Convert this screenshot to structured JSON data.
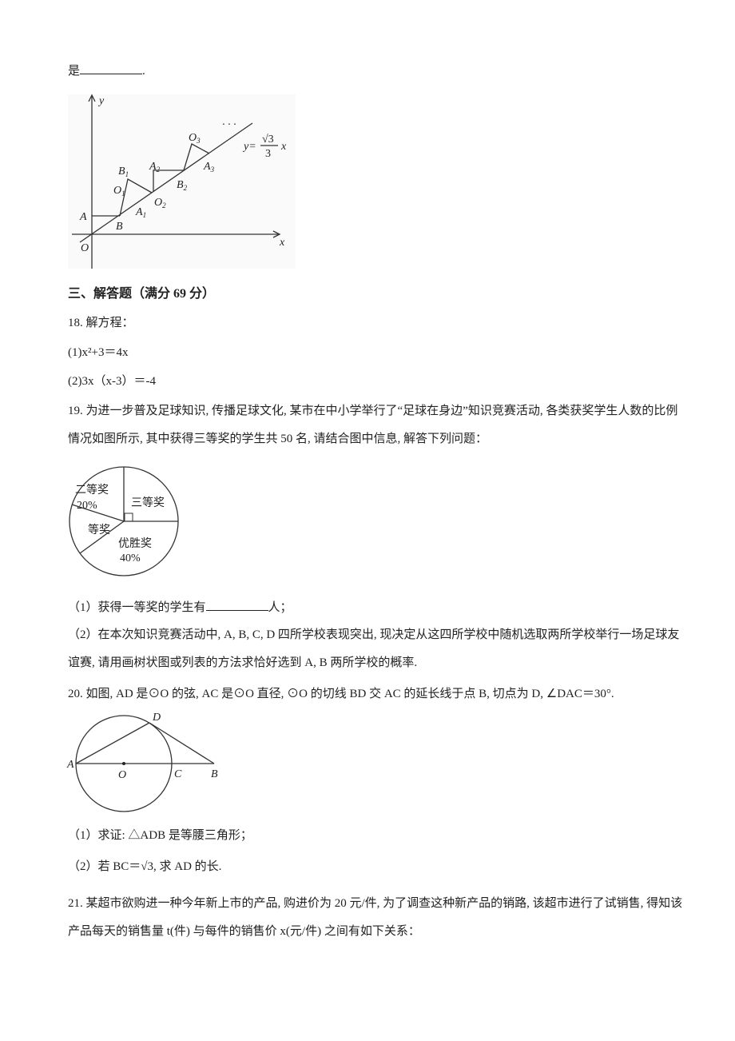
{
  "top_line": {
    "prefix": "是",
    "suffix": "."
  },
  "figure1": {
    "axis_y": "y",
    "axis_x": "x",
    "origin": "O",
    "points": [
      {
        "base": "A",
        "sub": ""
      },
      {
        "base": "B",
        "sub": ""
      },
      {
        "base": "B",
        "sub": "1"
      },
      {
        "base": "O",
        "sub": "1"
      },
      {
        "base": "A",
        "sub": "1"
      },
      {
        "base": "A",
        "sub": "2"
      },
      {
        "base": "O",
        "sub": "2"
      },
      {
        "base": "B",
        "sub": "2"
      },
      {
        "base": "O",
        "sub": "3"
      },
      {
        "base": "A",
        "sub": "3"
      }
    ],
    "equation": {
      "lhs": "y=",
      "numerator": "√3",
      "denominator": "3",
      "var": "x"
    },
    "dots": "· · ·"
  },
  "section": "三、解答题（满分 69 分）",
  "q18": {
    "stem": "18. 解方程：",
    "part1": "(1)x²+3＝4x",
    "part2": "(2)3x（x-3）＝-4"
  },
  "q19": {
    "stem": "19. 为进一步普及足球知识, 传播足球文化, 某市在中小学举行了“足球在身边”知识竞赛活动, 各类获奖学生人数的比例情况如图所示, 其中获得三等奖的学生共 50 名, 请结合图中信息, 解答下列问题：",
    "pie_labels": {
      "second": "二等奖",
      "second_pct": "20%",
      "third": "三等奖",
      "first": "等奖",
      "winner": "优胜奖",
      "winner_pct": "40%"
    },
    "part1_prefix": "（1）获得一等奖的学生有",
    "part1_suffix": "人；",
    "part2": "（2）在本次知识竞赛活动中, A, B, C, D 四所学校表现突出, 现决定从这四所学校中随机选取两所学校举行一场足球友谊赛, 请用画树状图或列表的方法求恰好选到 A, B 两所学校的概率."
  },
  "q20": {
    "stem": "20. 如图, AD 是⊙O 的弦, AC 是⊙O 直径, ⊙O 的切线 BD 交 AC 的延长线于点 B, 切点为 D, ∠DAC＝30°.",
    "labels": {
      "A": "A",
      "O": "O",
      "C": "C",
      "B": "B",
      "D": "D"
    },
    "part1": "（1）求证: △ADB 是等腰三角形；",
    "part2": "（2）若 BC＝√3, 求 AD 的长."
  },
  "q21": {
    "stem": "21. 某超市欲购进一种今年新上市的产品, 购进价为 20 元/件, 为了调查这种新产品的销路, 该超市进行了试销售, 得知该产品每天的销售量 t(件) 与每件的销售价 x(元/件) 之间有如下关系："
  }
}
